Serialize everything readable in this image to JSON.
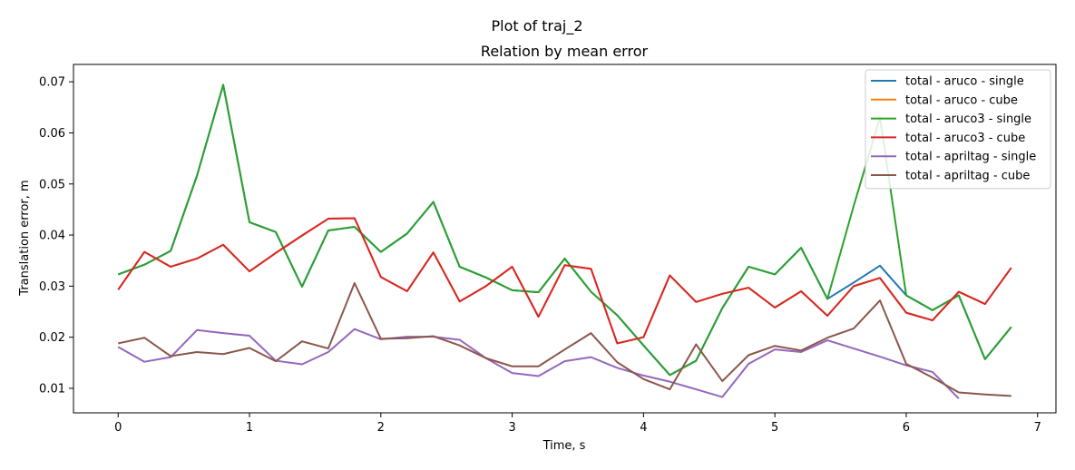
{
  "figure": {
    "suptitle": "Plot of traj_2"
  },
  "chart_data": {
    "type": "line",
    "title": "Relation by mean error",
    "xlabel": "Time, s",
    "ylabel": "Translation error, m",
    "xlim": [
      -0.34,
      7.14
    ],
    "ylim": [
      0.0052,
      0.0734
    ],
    "xticks": [
      0,
      1,
      2,
      3,
      4,
      5,
      6,
      7
    ],
    "xtick_labels": [
      "0",
      "1",
      "2",
      "3",
      "4",
      "5",
      "6",
      "7"
    ],
    "yticks": [
      0.01,
      0.02,
      0.03,
      0.04,
      0.05,
      0.06,
      0.07
    ],
    "ytick_labels": [
      "0.01",
      "0.02",
      "0.03",
      "0.04",
      "0.05",
      "0.06",
      "0.07"
    ],
    "grid": false,
    "legend_position": "top-right",
    "series": [
      {
        "name": "total - aruco - single",
        "color": "#1f77b4",
        "x": [
          0,
          0.2,
          0.4,
          0.6,
          0.8,
          1.0,
          1.2,
          1.4,
          1.6,
          1.8,
          2.0,
          2.2,
          2.4,
          2.6,
          2.8,
          3.0,
          3.2,
          3.4,
          3.6,
          3.8,
          4.0,
          4.2,
          4.4,
          4.6,
          4.8,
          5.0,
          5.2,
          5.4,
          5.6,
          5.8,
          6.0,
          6.2,
          6.4,
          6.6,
          6.8
        ],
        "y": [
          0.0323,
          0.0342,
          0.0369,
          0.0516,
          0.0694,
          0.0425,
          0.0406,
          0.0299,
          0.0409,
          0.0416,
          0.0367,
          0.0403,
          0.0465,
          0.0338,
          0.0317,
          0.0292,
          0.0288,
          0.0354,
          0.0289,
          0.0243,
          0.0184,
          0.0126,
          0.0154,
          0.0257,
          0.0338,
          0.0323,
          0.0375,
          0.0275,
          0.0307,
          0.034,
          0.0282,
          0.0253,
          0.0282,
          0.0157,
          0.022
        ]
      },
      {
        "name": "total - aruco - cube",
        "color": "#ff7f0e",
        "x": [
          0,
          0.2,
          0.4,
          0.6,
          0.8,
          1.0,
          1.2,
          1.4,
          1.6,
          1.8,
          2.0,
          2.2,
          2.4,
          2.6,
          2.8,
          3.0,
          3.2,
          3.4,
          3.6,
          3.8,
          4.0,
          4.2,
          4.4,
          4.6,
          4.8,
          5.0,
          5.2,
          5.4,
          5.6,
          5.8,
          6.0,
          6.2,
          6.4,
          6.6,
          6.8
        ],
        "y": [
          0.0293,
          0.0367,
          0.0338,
          0.0354,
          0.0381,
          0.0329,
          0.0365,
          0.0399,
          0.0432,
          0.0433,
          0.0318,
          0.029,
          0.0366,
          0.027,
          0.03,
          0.0338,
          0.024,
          0.0341,
          0.0334,
          0.0188,
          0.02,
          0.0321,
          0.0269,
          0.0285,
          0.0297,
          0.0258,
          0.029,
          0.0242,
          0.03,
          0.0316,
          0.0248,
          0.0233,
          0.0289,
          0.0265,
          0.0336
        ]
      },
      {
        "name": "total - aruco3 - single",
        "color": "#2ca02c",
        "x": [
          0,
          0.2,
          0.4,
          0.6,
          0.8,
          1.0,
          1.2,
          1.4,
          1.6,
          1.8,
          2.0,
          2.2,
          2.4,
          2.6,
          2.8,
          3.0,
          3.2,
          3.4,
          3.6,
          3.8,
          4.0,
          4.2,
          4.4,
          4.6,
          4.8,
          5.0,
          5.2,
          5.4,
          5.6,
          5.8,
          6.0,
          6.2,
          6.4,
          6.6,
          6.8
        ],
        "y": [
          0.0323,
          0.0342,
          0.0369,
          0.0516,
          0.0694,
          0.0425,
          0.0406,
          0.0299,
          0.0409,
          0.0416,
          0.0367,
          0.0403,
          0.0465,
          0.0338,
          0.0317,
          0.0292,
          0.0288,
          0.0354,
          0.0289,
          0.0243,
          0.0184,
          0.0126,
          0.0154,
          0.0257,
          0.0338,
          0.0323,
          0.0375,
          0.0275,
          0.0457,
          0.063,
          0.0282,
          0.0253,
          0.0282,
          0.0157,
          0.022
        ]
      },
      {
        "name": "total - aruco3 - cube",
        "color": "#d62728",
        "x": [
          0,
          0.2,
          0.4,
          0.6,
          0.8,
          1.0,
          1.2,
          1.4,
          1.6,
          1.8,
          2.0,
          2.2,
          2.4,
          2.6,
          2.8,
          3.0,
          3.2,
          3.4,
          3.6,
          3.8,
          4.0,
          4.2,
          4.4,
          4.6,
          4.8,
          5.0,
          5.2,
          5.4,
          5.6,
          5.8,
          6.0,
          6.2,
          6.4,
          6.6,
          6.8
        ],
        "y": [
          0.0293,
          0.0367,
          0.0338,
          0.0354,
          0.0381,
          0.0329,
          0.0365,
          0.0399,
          0.0432,
          0.0433,
          0.0318,
          0.029,
          0.0366,
          0.027,
          0.03,
          0.0338,
          0.024,
          0.0341,
          0.0334,
          0.0188,
          0.02,
          0.0321,
          0.0269,
          0.0285,
          0.0297,
          0.0258,
          0.029,
          0.0242,
          0.03,
          0.0316,
          0.0248,
          0.0233,
          0.0289,
          0.0265,
          0.0336
        ]
      },
      {
        "name": "total - apriltag - single",
        "color": "#9467bd",
        "x": [
          0,
          0.2,
          0.4,
          0.6,
          0.8,
          1.0,
          1.2,
          1.4,
          1.6,
          1.8,
          2.0,
          2.2,
          2.4,
          2.6,
          2.8,
          3.0,
          3.2,
          3.4,
          3.6,
          3.8,
          4.0,
          4.2,
          4.4,
          4.6,
          4.8,
          5.0,
          5.2,
          5.4,
          5.6,
          5.8,
          6.0,
          6.2,
          6.4
        ],
        "y": [
          0.0181,
          0.0152,
          0.0161,
          0.0214,
          0.0208,
          0.0203,
          0.0154,
          0.0147,
          0.0171,
          0.0216,
          0.0196,
          0.0201,
          0.0201,
          0.0195,
          0.0159,
          0.013,
          0.0124,
          0.0153,
          0.0161,
          0.014,
          0.0125,
          0.0113,
          0.0098,
          0.0083,
          0.0148,
          0.0176,
          0.0171,
          0.0194,
          0.0178,
          0.0162,
          0.0145,
          0.0132,
          0.008
        ]
      },
      {
        "name": "total - apriltag - cube",
        "color": "#8c564b",
        "x": [
          0,
          0.2,
          0.4,
          0.6,
          0.8,
          1.0,
          1.2,
          1.4,
          1.6,
          1.8,
          2.0,
          2.2,
          2.4,
          2.6,
          2.8,
          3.0,
          3.2,
          3.4,
          3.6,
          3.8,
          4.0,
          4.2,
          4.4,
          4.6,
          4.8,
          5.0,
          5.2,
          5.4,
          5.6,
          5.8,
          6.0,
          6.2,
          6.4,
          6.6,
          6.8
        ],
        "y": [
          0.0188,
          0.0199,
          0.0163,
          0.0171,
          0.0167,
          0.0179,
          0.0153,
          0.0192,
          0.0178,
          0.0306,
          0.0197,
          0.0198,
          0.0202,
          0.0184,
          0.0159,
          0.0143,
          0.0143,
          0.0176,
          0.0208,
          0.0151,
          0.0118,
          0.0098,
          0.0186,
          0.0114,
          0.0165,
          0.0183,
          0.0174,
          0.0199,
          0.0217,
          0.0272,
          0.0148,
          0.0121,
          0.0092,
          0.0088,
          0.0085
        ]
      }
    ]
  }
}
